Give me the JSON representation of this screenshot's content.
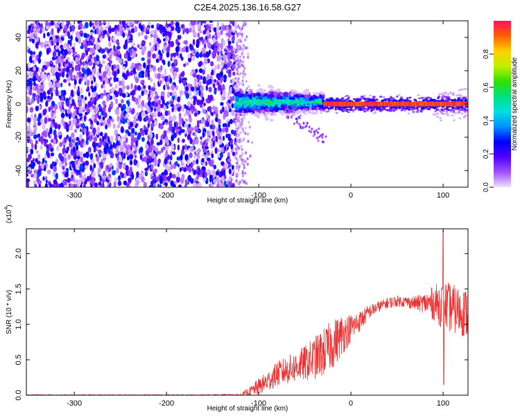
{
  "title": "C2E4.2025.136.16.58.G27",
  "chart_data": [
    {
      "type": "heatmap",
      "xlabel": "Height of straight line (km)",
      "ylabel": "Frequency (Hz)",
      "xlim": [
        -352,
        127
      ],
      "ylim": [
        -50,
        50
      ],
      "xticks": [
        -300,
        -200,
        -100,
        0,
        100
      ],
      "yticks": [
        -40,
        -20,
        0,
        20,
        40
      ],
      "colorbar": {
        "label": "Normalized spectral amplitude",
        "range": [
          0,
          1
        ],
        "ticks": [
          "0.0",
          "0.2",
          "0.4",
          "0.6",
          "0.8"
        ],
        "colors": [
          "#f0e0ff",
          "#a050ff",
          "#5000ff",
          "#0000ff",
          "#0090ff",
          "#00e0e0",
          "#00e080",
          "#30e000",
          "#c0f000",
          "#ffd000",
          "#ff6000",
          "#ff1060"
        ]
      },
      "regions": [
        {
          "x": [
            -352,
            -125
          ],
          "y": [
            -50,
            50
          ],
          "level": "low (0.1-0.3), broadband"
        },
        {
          "x": [
            -125,
            -30
          ],
          "y": [
            -8,
            8
          ],
          "level": "moderate (0.3-0.6)"
        },
        {
          "x": [
            -30,
            127
          ],
          "y": [
            -1,
            1
          ],
          "level": "high (0.9-1.0) carrier line"
        }
      ]
    },
    {
      "type": "line",
      "xlabel": "Height of straight line (km)",
      "ylabel": "SNR (10 * v/v)",
      "ylabel_multiplier": "(x10",
      "ylabel_exponent": "4",
      "ylabel_multiplier_close": ")",
      "xlim": [
        -352,
        127
      ],
      "ylim": [
        0,
        2.35
      ],
      "xticks": [
        -300,
        -200,
        -100,
        0,
        100
      ],
      "yticks": [
        "0.0",
        "0.5",
        "1.0",
        "1.5",
        "2.0"
      ],
      "color": "#ee3030",
      "series": [
        {
          "x": [
            -352,
            -300,
            -250,
            -200,
            -150,
            -120,
            -110,
            -100,
            -90,
            -80,
            -70,
            -60,
            -50,
            -40,
            -30,
            -20,
            -10,
            0,
            10,
            20,
            30,
            40,
            50,
            60,
            70,
            80,
            90,
            100,
            110,
            120,
            127
          ],
          "values": [
            0.0,
            0.0,
            0.0,
            0.0,
            0.0,
            0.0,
            0.05,
            0.12,
            0.2,
            0.3,
            0.35,
            0.4,
            0.45,
            0.52,
            0.6,
            0.72,
            0.85,
            0.95,
            1.05,
            1.18,
            1.25,
            1.3,
            1.33,
            1.32,
            1.3,
            1.3,
            1.3,
            1.28,
            1.22,
            1.18,
            1.15
          ],
          "noise": [
            0.01,
            0.01,
            0.01,
            0.01,
            0.01,
            0.02,
            0.06,
            0.12,
            0.15,
            0.18,
            0.2,
            0.22,
            0.25,
            0.3,
            0.35,
            0.35,
            0.3,
            0.2,
            0.15,
            0.1,
            0.08,
            0.08,
            0.08,
            0.08,
            0.1,
            0.15,
            0.25,
            0.35,
            0.35,
            0.35,
            0.35
          ]
        }
      ],
      "peak": {
        "x": 100,
        "value": 2.35
      },
      "dip": {
        "x": 100,
        "value": 0.15
      }
    }
  ]
}
